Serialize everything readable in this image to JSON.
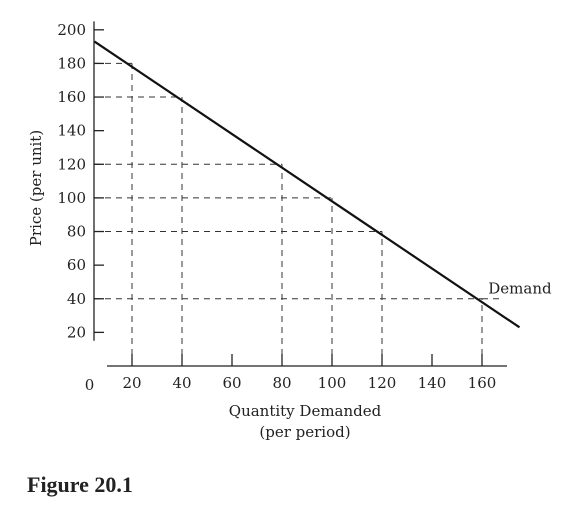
{
  "chart_data": {
    "type": "line",
    "xlabel_line1": "Quantity Demanded",
    "xlabel_line2": "(per period)",
    "ylabel": "Price (per unit)",
    "xlim": [
      0,
      170
    ],
    "ylim": [
      0,
      210
    ],
    "x_ticks": [
      20,
      40,
      60,
      80,
      100,
      120,
      140,
      160
    ],
    "y_ticks": [
      20,
      40,
      60,
      80,
      100,
      120,
      140,
      160,
      180,
      200
    ],
    "origin_label": "0",
    "series": [
      {
        "name": "Demand",
        "x": [
          5,
          175
        ],
        "y": [
          193,
          23
        ]
      }
    ],
    "guide_points": [
      {
        "x": 20,
        "y": 180
      },
      {
        "x": 40,
        "y": 160
      },
      {
        "x": 80,
        "y": 120
      },
      {
        "x": 100,
        "y": 100
      },
      {
        "x": 120,
        "y": 80
      },
      {
        "x": 160,
        "y": 40
      }
    ],
    "grid": false
  },
  "caption": "Figure 20.1"
}
